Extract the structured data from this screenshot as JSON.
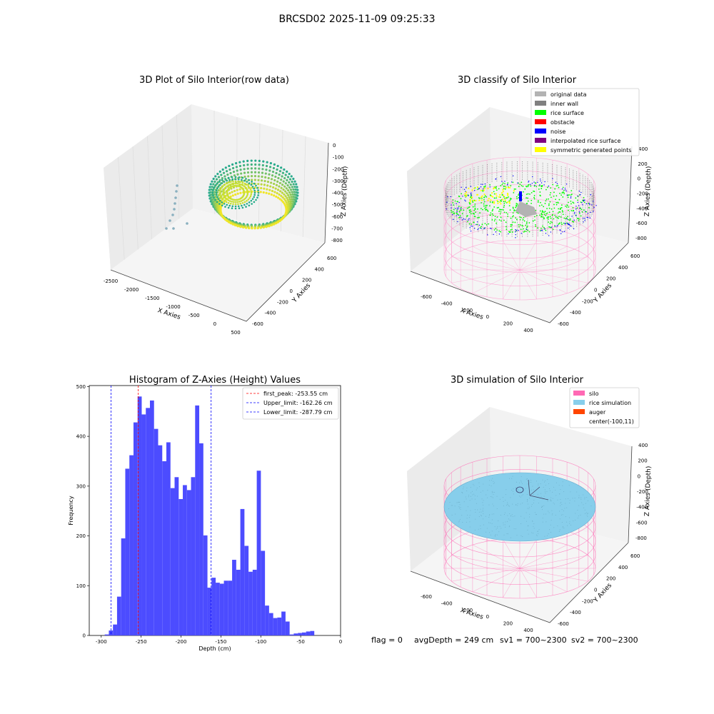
{
  "figure_title": "BRCSD02 2025-11-09 09:25:33",
  "status_line": {
    "flag": "flag = 0",
    "avg_depth": "avgDepth = 249 cm",
    "sv1": "sv1 = 700~2300",
    "sv2": "sv2 = 700~2300"
  },
  "colors": {
    "histogram_bar": "#4c4cff",
    "first_peak_line": "#ff0000",
    "limit_lines": "#0000ff",
    "silo_mesh": "#ff69b4",
    "rice_simulation": "#87ceeb",
    "auger": "#ff4500",
    "rice_surface": "#00ff00",
    "noise": "#0000ff",
    "original_data": "#b3b3b3",
    "inner_wall": "#808080",
    "obstacle": "#ff0000",
    "interpolated_rice_surface": "#800080",
    "symmetric_generated_points": "#ffff00"
  },
  "chart_data": [
    {
      "type": "scatter3d",
      "title": "3D Plot of Silo Interior(row data)",
      "xlabel": "X Axies",
      "ylabel": "Y Axies",
      "zlabel": "Z Axies (Depth)",
      "x_ticks": [
        "-2500",
        "-2000",
        "-1500",
        "-1000",
        "-500",
        "0",
        "500"
      ],
      "y_ticks": [
        "-600",
        "-400",
        "-200",
        "0",
        "200",
        "400",
        "600"
      ],
      "z_ticks": [
        "0",
        "-100",
        "-200",
        "-300",
        "-400",
        "-500",
        "-600",
        "-700",
        "-800"
      ]
    },
    {
      "type": "scatter3d",
      "title": "3D classify of Silo Interior",
      "xlabel": "X Axies",
      "ylabel": "Y Axies",
      "zlabel": "Z Axies (Depth)",
      "x_ticks": [
        "-600",
        "-400",
        "-200",
        "0",
        "200",
        "400"
      ],
      "y_ticks": [
        "-600",
        "-400",
        "-200",
        "0",
        "200",
        "400",
        "600"
      ],
      "z_ticks": [
        "400",
        "200",
        "0",
        "-200",
        "-400",
        "-600",
        "-800"
      ],
      "legend": [
        "original data",
        "inner wall",
        "rice surface",
        "obstacle",
        "noise",
        "interpolated rice surface",
        "symmetric generated points"
      ],
      "legend_placement": "top-right"
    },
    {
      "type": "bar",
      "title": "Histogram of Z-Axies (Height) Values",
      "xlabel": "Depth (cm)",
      "ylabel": "Frequency",
      "xlim": [
        -315,
        0
      ],
      "ylim": [
        0,
        502
      ],
      "x_ticks": [
        -300,
        -250,
        -200,
        -150,
        -100,
        -50,
        0
      ],
      "y_ticks": [
        0,
        100,
        200,
        300,
        400,
        500
      ],
      "bin_edges_start": -295.6,
      "bin_width": 5.15,
      "values": [
        2,
        10,
        22,
        78,
        195,
        335,
        362,
        428,
        480,
        444,
        457,
        472,
        415,
        382,
        350,
        388,
        296,
        318,
        274,
        302,
        292,
        318,
        462,
        386,
        201,
        96,
        116,
        106,
        104,
        110,
        110,
        152,
        132,
        254,
        180,
        128,
        132,
        331,
        170,
        60,
        45,
        35,
        36,
        48,
        28,
        2,
        4,
        5,
        6,
        8,
        9
      ],
      "vlines": [
        {
          "label": "first_peak: -253.55 cm",
          "x": -253.55,
          "color": "#ff0000"
        },
        {
          "label": "Upper_limit: -162.26 cm",
          "x": -162.26,
          "color": "#0000ff"
        },
        {
          "label": "Lower_limit: -287.79 cm",
          "x": -287.79,
          "color": "#0000ff"
        }
      ],
      "legend_placement": "top-right",
      "grid": false
    },
    {
      "type": "surface3d",
      "title": "3D simulation of Silo Interior",
      "xlabel": "X Axies",
      "ylabel": "Y Axies",
      "zlabel": "Z Axies (Depth)",
      "x_ticks": [
        "-600",
        "-400",
        "-200",
        "0",
        "200",
        "400"
      ],
      "y_ticks": [
        "-600",
        "-400",
        "-200",
        "0",
        "200",
        "400",
        "600"
      ],
      "z_ticks": [
        "400",
        "200",
        "0",
        "-200",
        "-400",
        "-600",
        "-800"
      ],
      "legend": [
        "silo",
        "rice simulation",
        "auger",
        "center(-100,11)"
      ],
      "legend_placement": "top-right"
    }
  ]
}
